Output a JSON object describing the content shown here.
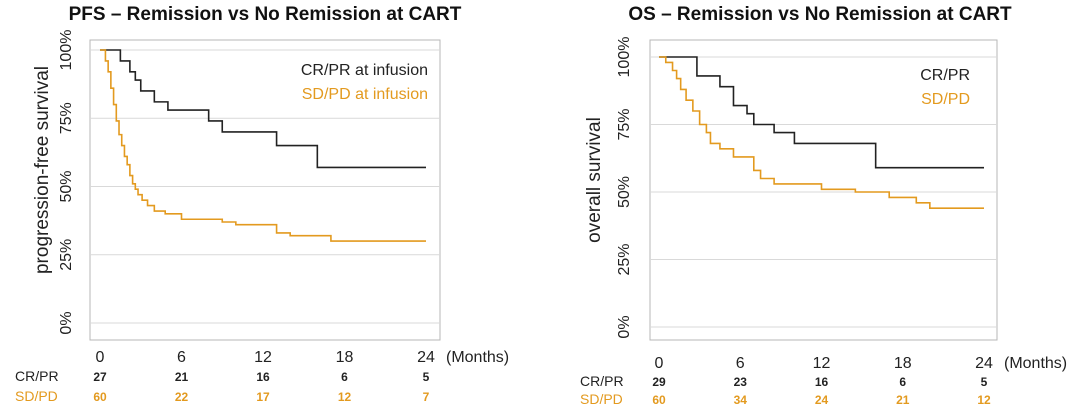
{
  "colors": {
    "cr_pr": "#222222",
    "sd_pd": "#E39A1F",
    "grid": "#d9d9d9",
    "frame": "#b7b7b7"
  },
  "chart_data": [
    {
      "type": "line",
      "title": "PFS – Remission vs No Remission at CART",
      "xlabel": "(Months)",
      "ylabel": "progression-free survival",
      "xlim": [
        0,
        24
      ],
      "ylim": [
        0,
        100
      ],
      "x_ticks": [
        "0",
        "6",
        "12",
        "18",
        "24"
      ],
      "y_ticks": [
        "0%",
        "25%",
        "50%",
        "75%",
        "100%"
      ],
      "grid": "horizontal",
      "legend_position": "top-right",
      "series": [
        {
          "name": "CR/PR at infusion",
          "color": "#222222",
          "steps": [
            [
              0,
              100
            ],
            [
              1.5,
              96
            ],
            [
              2.2,
              92
            ],
            [
              2.6,
              89
            ],
            [
              3.0,
              85
            ],
            [
              4.0,
              81
            ],
            [
              5.0,
              78
            ],
            [
              8.0,
              74
            ],
            [
              9.0,
              70
            ],
            [
              13.0,
              65
            ],
            [
              16.0,
              57
            ],
            [
              24,
              57
            ]
          ]
        },
        {
          "name": "SD/PD at infusion",
          "color": "#E39A1F",
          "steps": [
            [
              0,
              100
            ],
            [
              0.4,
              96
            ],
            [
              0.6,
              92
            ],
            [
              0.8,
              86
            ],
            [
              1.0,
              80
            ],
            [
              1.2,
              74
            ],
            [
              1.4,
              69
            ],
            [
              1.6,
              65
            ],
            [
              1.8,
              61
            ],
            [
              2.0,
              58
            ],
            [
              2.2,
              54
            ],
            [
              2.4,
              51
            ],
            [
              2.6,
              49
            ],
            [
              2.8,
              47
            ],
            [
              3.1,
              45
            ],
            [
              3.5,
              43
            ],
            [
              4.0,
              41
            ],
            [
              4.8,
              40
            ],
            [
              6.0,
              38
            ],
            [
              9.0,
              37
            ],
            [
              10.0,
              36
            ],
            [
              13.0,
              33
            ],
            [
              14.0,
              32
            ],
            [
              17.0,
              30
            ],
            [
              24,
              30
            ]
          ]
        }
      ],
      "risk_table": {
        "x": [
          0,
          6,
          12,
          18,
          24
        ],
        "rows": [
          {
            "label": "CR/PR",
            "color": "#222222",
            "values": [
              "27",
              "21",
              "16",
              "6",
              "5"
            ]
          },
          {
            "label": "SD/PD",
            "color": "#E39A1F",
            "values": [
              "60",
              "22",
              "17",
              "12",
              "7"
            ]
          }
        ]
      }
    },
    {
      "type": "line",
      "title": "OS – Remission vs No Remission at CART",
      "xlabel": "(Months)",
      "ylabel": "overall survival",
      "xlim": [
        0,
        24
      ],
      "ylim": [
        0,
        100
      ],
      "x_ticks": [
        "0",
        "6",
        "12",
        "18",
        "24"
      ],
      "y_ticks": [
        "0%",
        "25%",
        "50%",
        "75%",
        "100%"
      ],
      "grid": "horizontal",
      "legend_position": "top-right",
      "series": [
        {
          "name": "CR/PR",
          "color": "#222222",
          "steps": [
            [
              0,
              100
            ],
            [
              2.8,
              93
            ],
            [
              4.5,
              89
            ],
            [
              5.5,
              82
            ],
            [
              6.5,
              79
            ],
            [
              7.0,
              75
            ],
            [
              8.5,
              72
            ],
            [
              10.0,
              68
            ],
            [
              16.0,
              59
            ],
            [
              24,
              59
            ]
          ]
        },
        {
          "name": "SD/PD",
          "color": "#E39A1F",
          "steps": [
            [
              0,
              100
            ],
            [
              0.5,
              98
            ],
            [
              1.0,
              95
            ],
            [
              1.3,
              92
            ],
            [
              1.6,
              88
            ],
            [
              2.0,
              84
            ],
            [
              2.5,
              80
            ],
            [
              3.0,
              75
            ],
            [
              3.5,
              72
            ],
            [
              3.8,
              68
            ],
            [
              4.5,
              66
            ],
            [
              5.5,
              63
            ],
            [
              7.0,
              58
            ],
            [
              7.5,
              55
            ],
            [
              8.5,
              53
            ],
            [
              12.0,
              51
            ],
            [
              14.5,
              50
            ],
            [
              17.0,
              48
            ],
            [
              19.0,
              46
            ],
            [
              20.0,
              44
            ],
            [
              24,
              44
            ]
          ]
        }
      ],
      "risk_table": {
        "x": [
          0,
          6,
          12,
          18,
          24
        ],
        "rows": [
          {
            "label": "CR/PR",
            "color": "#222222",
            "values": [
              "29",
              "23",
              "16",
              "6",
              "5"
            ]
          },
          {
            "label": "SD/PD",
            "color": "#E39A1F",
            "values": [
              "60",
              "34",
              "24",
              "21",
              "12"
            ]
          }
        ]
      }
    }
  ]
}
